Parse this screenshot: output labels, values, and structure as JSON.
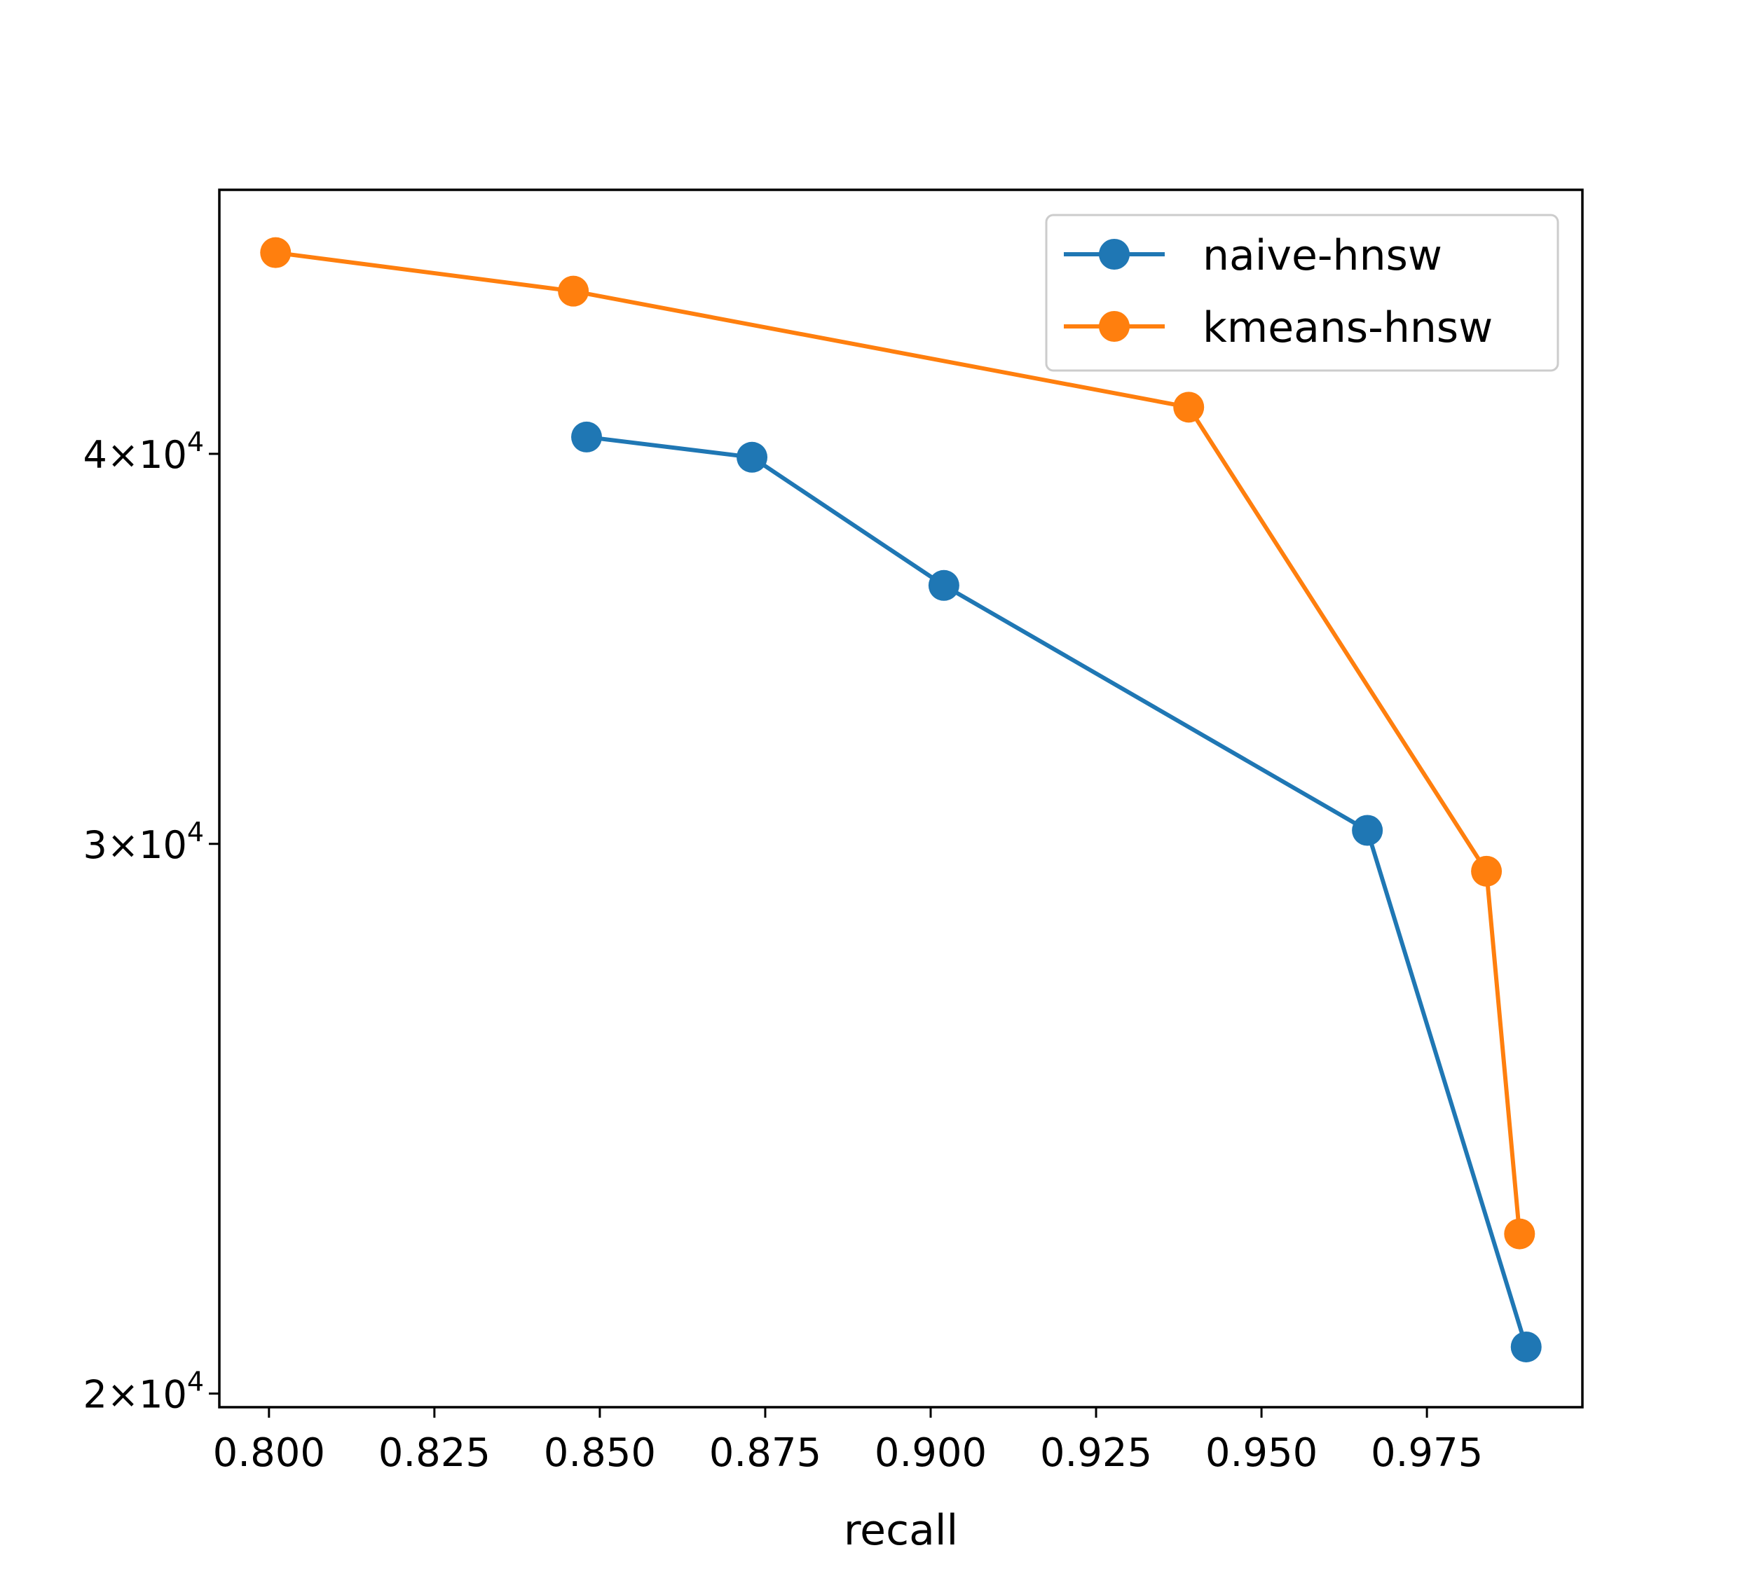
{
  "chart_data": {
    "type": "line",
    "xlabel": "recall",
    "ylabel": "",
    "yscale": "log",
    "xlim": [
      0.7925,
      0.9985
    ],
    "ylim": [
      19800,
      48600
    ],
    "xticks": [
      {
        "value": 0.8,
        "label": "0.800"
      },
      {
        "value": 0.825,
        "label": "0.825"
      },
      {
        "value": 0.85,
        "label": "0.850"
      },
      {
        "value": 0.875,
        "label": "0.875"
      },
      {
        "value": 0.9,
        "label": "0.900"
      },
      {
        "value": 0.925,
        "label": "0.925"
      },
      {
        "value": 0.95,
        "label": "0.950"
      },
      {
        "value": 0.975,
        "label": "0.975"
      }
    ],
    "yticks": [
      {
        "value": 20000,
        "mantissa": "2",
        "base": "10",
        "exponent": "4"
      },
      {
        "value": 30000,
        "mantissa": "3",
        "base": "10",
        "exponent": "4"
      },
      {
        "value": 40000,
        "mantissa": "4",
        "base": "10",
        "exponent": "4"
      }
    ],
    "grid": false,
    "legend_position": "upper right",
    "series": [
      {
        "name": "naive-hnsw",
        "color": "#1f77b4",
        "marker": "circle",
        "x": [
          0.848,
          0.873,
          0.902,
          0.966,
          0.99
        ],
        "y": [
          40500,
          39900,
          36300,
          30300,
          20700
        ]
      },
      {
        "name": "kmeans-hnsw",
        "color": "#ff7f0e",
        "marker": "circle",
        "x": [
          0.801,
          0.846,
          0.939,
          0.984,
          0.989
        ],
        "y": [
          46400,
          45100,
          41400,
          29400,
          22500
        ]
      }
    ]
  }
}
